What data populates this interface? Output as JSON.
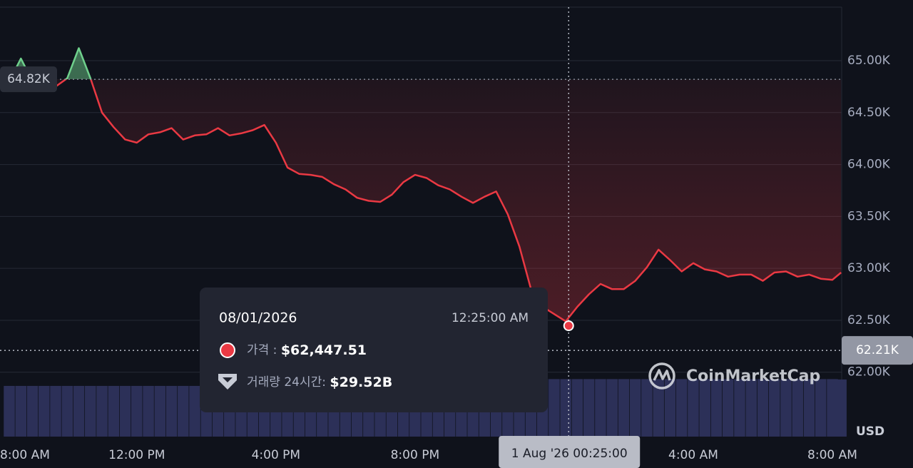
{
  "chart_data": {
    "type": "line",
    "x": [
      "31 Jul '26 08:20:00",
      "31 Jul '26 08:40:00",
      "31 Jul '26 09:00:00",
      "31 Jul '26 09:20:00",
      "31 Jul '26 09:40:00",
      "31 Jul '26 10:00:00",
      "31 Jul '26 10:20:00",
      "31 Jul '26 10:40:00",
      "31 Jul '26 11:00:00",
      "31 Jul '26 11:20:00",
      "31 Jul '26 11:40:00",
      "31 Jul '26 12:00:00",
      "31 Jul '26 12:20:00",
      "31 Jul '26 12:40:00",
      "31 Jul '26 13:00:00",
      "31 Jul '26 13:20:00",
      "31 Jul '26 13:40:00",
      "31 Jul '26 14:00:00",
      "31 Jul '26 14:20:00",
      "31 Jul '26 14:40:00",
      "31 Jul '26 15:00:00",
      "31 Jul '26 15:20:00",
      "31 Jul '26 15:40:00",
      "31 Jul '26 16:00:00",
      "31 Jul '26 16:20:00",
      "31 Jul '26 16:40:00",
      "31 Jul '26 17:00:00",
      "31 Jul '26 17:20:00",
      "31 Jul '26 17:40:00",
      "31 Jul '26 18:00:00",
      "31 Jul '26 18:20:00",
      "31 Jul '26 18:40:00",
      "31 Jul '26 19:00:00",
      "31 Jul '26 19:20:00",
      "31 Jul '26 19:40:00",
      "31 Jul '26 20:00:00",
      "31 Jul '26 20:20:00",
      "31 Jul '26 20:40:00",
      "31 Jul '26 21:00:00",
      "31 Jul '26 21:20:00",
      "31 Jul '26 21:40:00",
      "31 Jul '26 22:00:00",
      "31 Jul '26 22:20:00",
      "31 Jul '26 22:40:00",
      "31 Jul '26 23:00:00",
      "31 Jul '26 23:20:00",
      "31 Jul '26 23:40:00",
      "1 Aug '26 00:00:00",
      "1 Aug '26 00:20:00",
      "1 Aug '26 00:40:00",
      "1 Aug '26 01:00:00",
      "1 Aug '26 01:20:00",
      "1 Aug '26 01:40:00",
      "1 Aug '26 02:00:00",
      "1 Aug '26 02:20:00",
      "1 Aug '26 02:40:00",
      "1 Aug '26 03:00:00",
      "1 Aug '26 03:20:00",
      "1 Aug '26 03:40:00",
      "1 Aug '26 04:00:00",
      "1 Aug '26 04:20:00",
      "1 Aug '26 04:40:00",
      "1 Aug '26 05:00:00",
      "1 Aug '26 05:20:00",
      "1 Aug '26 05:40:00",
      "1 Aug '26 06:00:00",
      "1 Aug '26 06:20:00",
      "1 Aug '26 06:40:00",
      "1 Aug '26 07:00:00",
      "1 Aug '26 07:20:00",
      "1 Aug '26 07:40:00",
      "1 Aug '26 08:00:00",
      "1 Aug '26 08:15:00"
    ],
    "series": [
      {
        "color": "#ea3943",
        "color_up": "#6fd08c",
        "values": [
          64800,
          65020,
          64800,
          64820,
          64750,
          64830,
          65120,
          64830,
          64500,
          64360,
          64240,
          64210,
          64290,
          64310,
          64350,
          64240,
          64280,
          64290,
          64350,
          64280,
          64300,
          64330,
          64380,
          64210,
          63970,
          63910,
          63900,
          63880,
          63810,
          63760,
          63680,
          63650,
          63640,
          63710,
          63830,
          63900,
          63870,
          63800,
          63760,
          63690,
          63630,
          63690,
          63740,
          63520,
          63210,
          62800,
          62630,
          62560,
          62490,
          62630,
          62750,
          62850,
          62800,
          62800,
          62880,
          63010,
          63180,
          63080,
          62970,
          63050,
          62990,
          62970,
          62920,
          62940,
          62940,
          62880,
          62960,
          62970,
          62920,
          62940,
          62900,
          62890,
          62960
        ]
      }
    ],
    "volume": {
      "color": "#2c3058",
      "values": [
        26,
        26,
        26,
        26,
        26,
        26,
        26,
        26,
        26,
        26,
        26,
        26,
        26,
        26,
        26,
        26,
        26,
        26,
        26,
        26,
        26,
        26,
        26,
        26,
        26,
        26,
        26,
        26,
        26,
        26,
        26,
        26,
        26,
        26,
        26,
        26,
        26,
        26,
        26,
        26,
        26,
        26,
        26,
        26,
        26,
        26,
        29.5,
        29.5,
        29.5,
        29.5,
        29.5,
        29.5,
        29.5,
        29.5,
        29.5,
        29.5,
        29.5,
        29.5,
        29.5,
        29.5,
        29.5,
        29.5,
        29.5,
        29.5,
        29.5,
        29.5,
        29.5,
        29.5,
        29.5,
        29.5,
        29.5,
        29.5,
        29.3
      ],
      "lim": [
        0,
        30
      ]
    },
    "xlim": [
      "31 Jul '26 08:04:00",
      "1 Aug '26 08:16:00"
    ],
    "xticks": [
      {
        "value": "31 Jul '26 08:00:00",
        "label": "8:00 AM"
      },
      {
        "value": "31 Jul '26 12:00:00",
        "label": "12:00 PM"
      },
      {
        "value": "31 Jul '26 16:00:00",
        "label": "4:00 PM"
      },
      {
        "value": "31 Jul '26 20:00:00",
        "label": "8:00 PM"
      },
      {
        "value": "1 Aug '26 04:00:00",
        "label": "4:00 AM"
      },
      {
        "value": "1 Aug '26 08:00:00",
        "label": "8:00 AM"
      }
    ],
    "ylim": [
      61380,
      65515
    ],
    "yticks": [
      {
        "value": 62000,
        "label": "62.00K"
      },
      {
        "value": 62500,
        "label": "62.50K"
      },
      {
        "value": 63000,
        "label": "63.00K"
      },
      {
        "value": 63500,
        "label": "63.50K"
      },
      {
        "value": 64000,
        "label": "64.00K"
      },
      {
        "value": 64500,
        "label": "64.50K"
      },
      {
        "value": 65000,
        "label": "65.00K"
      }
    ],
    "grid": true,
    "y_unit": "USD",
    "reference": {
      "value": 64820,
      "label": "64.82K"
    },
    "crosshair": {
      "x": "1 Aug '26 00:25:00",
      "y": {
        "value": 62210,
        "label": "62.21K"
      }
    },
    "tooltip": {
      "date": "08/01/2026",
      "time": "12:25:00 AM",
      "price_label": "가격 : ",
      "price": {
        "value": 62447.51,
        "label": "$62,447.51"
      },
      "volume_label": "거래량 24시간: ",
      "volume": {
        "value": 29.52,
        "label": "$29.52B"
      }
    },
    "watermark": "CoinMarketCap"
  }
}
